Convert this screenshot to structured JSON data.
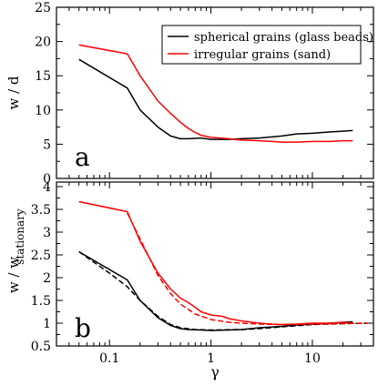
{
  "chart_data": [
    {
      "type": "line",
      "panel_label": "a",
      "xscale": "log",
      "xlim": [
        0.03,
        40
      ],
      "ylim": [
        0,
        25
      ],
      "ylabel": "w / d",
      "ytick_labels": [
        "0",
        "5",
        "10",
        "15",
        "20",
        "25"
      ],
      "yticks": [
        0,
        5,
        10,
        15,
        20,
        25
      ],
      "grid": false,
      "legend_position": "top-right",
      "series": [
        {
          "name": "spherical grains (glass beads)",
          "color": "#000000",
          "style": "solid",
          "x": [
            0.05,
            0.15,
            0.2,
            0.3,
            0.4,
            0.5,
            0.6,
            0.8,
            1.0,
            1.5,
            2,
            3,
            5,
            7,
            10,
            15,
            20,
            25
          ],
          "y": [
            17.4,
            13.2,
            10.0,
            7.5,
            6.2,
            5.8,
            5.8,
            5.9,
            5.7,
            5.7,
            5.8,
            5.9,
            6.2,
            6.5,
            6.6,
            6.8,
            6.9,
            7.0
          ]
        },
        {
          "name": "irregular grains (sand)",
          "color": "#ff0000",
          "style": "solid",
          "x": [
            0.05,
            0.15,
            0.2,
            0.3,
            0.4,
            0.5,
            0.6,
            0.7,
            0.8,
            1.0,
            1.5,
            2,
            3,
            4,
            5,
            7,
            10,
            15,
            20,
            25
          ],
          "y": [
            19.5,
            18.2,
            15.0,
            11.3,
            9.5,
            8.2,
            7.3,
            6.7,
            6.3,
            6.0,
            5.8,
            5.6,
            5.5,
            5.4,
            5.3,
            5.3,
            5.4,
            5.4,
            5.5,
            5.5
          ]
        }
      ]
    },
    {
      "type": "line",
      "panel_label": "b",
      "xscale": "log",
      "xlim": [
        0.03,
        40
      ],
      "ylim": [
        0.5,
        4.1
      ],
      "xlabel": "γ",
      "ylabel": "w / w",
      "ylabel_subscript": "stationary",
      "xtick_labels": [
        "0.1",
        "1",
        "10"
      ],
      "xticks": [
        0.1,
        1,
        10
      ],
      "ytick_labels": [
        "0.5",
        "1",
        "1.5",
        "2",
        "2.5",
        "3",
        "3.5",
        "4"
      ],
      "yticks": [
        0.5,
        1,
        1.5,
        2,
        2.5,
        3,
        3.5,
        4
      ],
      "grid": false,
      "series": [
        {
          "color": "#000000",
          "style": "solid",
          "x": [
            0.05,
            0.15,
            0.2,
            0.3,
            0.4,
            0.5,
            0.6,
            0.8,
            1.0,
            1.5,
            2,
            3,
            5,
            7,
            10,
            15,
            20,
            25
          ],
          "y": [
            2.57,
            1.95,
            1.5,
            1.12,
            0.95,
            0.88,
            0.86,
            0.85,
            0.84,
            0.85,
            0.86,
            0.9,
            0.93,
            0.96,
            0.98,
            1.0,
            1.02,
            1.03
          ]
        },
        {
          "color": "#000000",
          "style": "dashed",
          "x": [
            0.05,
            0.1,
            0.15,
            0.2,
            0.3,
            0.4,
            0.5,
            0.7,
            1.0,
            2,
            3,
            5,
            10,
            20,
            35
          ],
          "y": [
            2.57,
            2.1,
            1.8,
            1.5,
            1.15,
            0.97,
            0.9,
            0.86,
            0.85,
            0.86,
            0.88,
            0.92,
            0.97,
            0.99,
            1.0
          ]
        },
        {
          "color": "#ff0000",
          "style": "solid",
          "x": [
            0.05,
            0.15,
            0.2,
            0.3,
            0.4,
            0.5,
            0.6,
            0.7,
            0.8,
            1.0,
            1.3,
            1.5,
            2,
            3,
            4,
            5,
            7,
            10,
            15,
            20,
            25
          ],
          "y": [
            3.67,
            3.45,
            2.8,
            2.1,
            1.75,
            1.55,
            1.45,
            1.35,
            1.25,
            1.18,
            1.15,
            1.1,
            1.05,
            1.0,
            0.98,
            0.97,
            0.98,
            1.0,
            1.0,
            1.02,
            1.0
          ]
        },
        {
          "color": "#ff0000",
          "style": "dashed",
          "x": [
            0.15,
            0.2,
            0.3,
            0.4,
            0.5,
            0.7,
            1.0,
            1.5,
            2,
            3,
            5,
            10,
            20,
            35
          ],
          "y": [
            3.42,
            2.85,
            2.05,
            1.65,
            1.42,
            1.2,
            1.08,
            1.02,
            1.0,
            0.98,
            0.97,
            0.98,
            0.99,
            1.0
          ]
        }
      ]
    }
  ]
}
